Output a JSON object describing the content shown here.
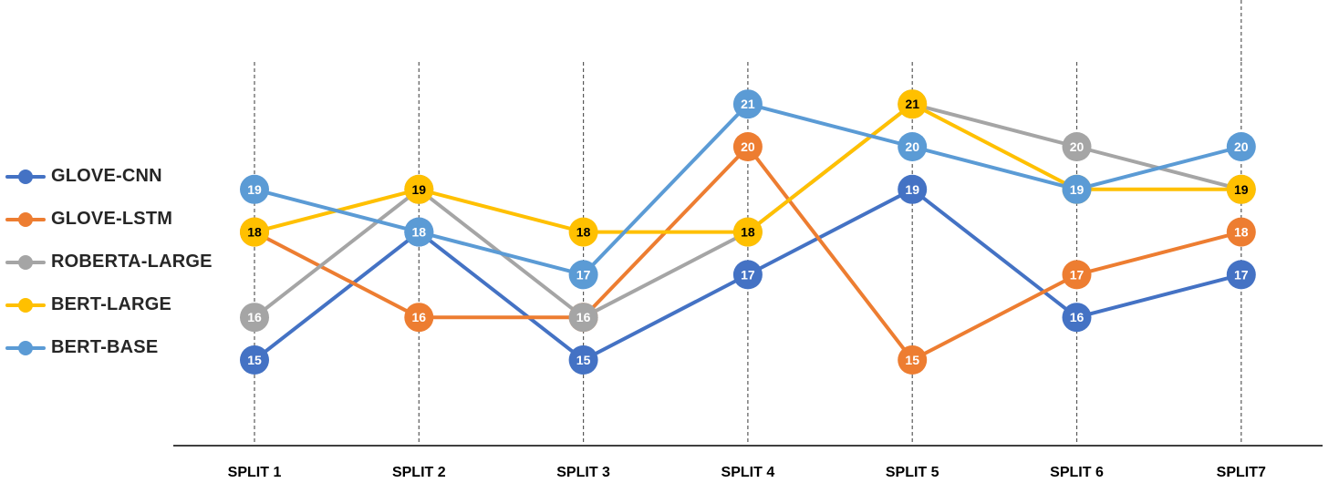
{
  "chart_data": {
    "type": "line",
    "categories": [
      "SPLIT 1",
      "SPLIT 2",
      "SPLIT 3",
      "SPLIT 4",
      "SPLIT 5",
      "SPLIT 6",
      "SPLIT7"
    ],
    "series": [
      {
        "name": "GLOVE-CNN",
        "color": "#4472C4",
        "label_color": "#ffffff",
        "values": [
          15,
          18,
          15,
          17,
          19,
          16,
          17
        ]
      },
      {
        "name": "GLOVE-LSTM",
        "color": "#ED7D31",
        "label_color": "#ffffff",
        "values": [
          18,
          16,
          16,
          20,
          15,
          17,
          18
        ]
      },
      {
        "name": "ROBERTA-LARGE",
        "color": "#A5A5A5",
        "label_color": "#ffffff",
        "values": [
          16,
          19,
          16,
          18,
          21,
          20,
          19
        ]
      },
      {
        "name": "BERT-LARGE",
        "color": "#FFC000",
        "label_color": "#000000",
        "values": [
          18,
          19,
          18,
          18,
          21,
          19,
          19
        ]
      },
      {
        "name": "BERT-BASE",
        "color": "#5B9BD5",
        "label_color": "#ffffff",
        "values": [
          19,
          18,
          17,
          21,
          20,
          19,
          20
        ]
      }
    ],
    "ylim": [
      12,
      23
    ],
    "grid": "vertical-dashed",
    "legend": "left"
  }
}
